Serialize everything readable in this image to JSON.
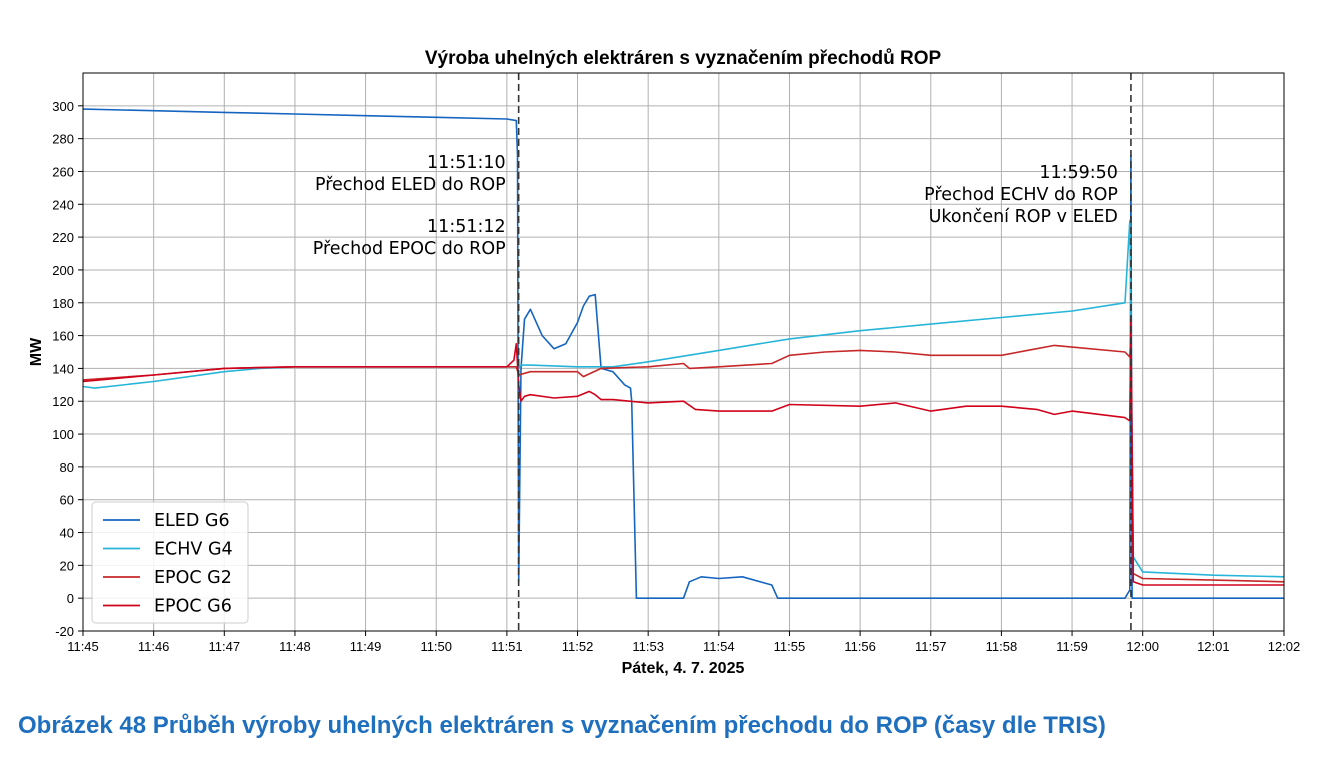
{
  "chart_data": {
    "type": "line",
    "title": "Výroba uhelných elektráren s vyznačením přechodů ROP",
    "xlabel": "Pátek, 4. 7. 2025",
    "ylabel": "MW",
    "xlim": [
      "11:45",
      "12:02"
    ],
    "ylim": [
      -20,
      320
    ],
    "x_ticks": [
      "11:45",
      "11:46",
      "11:47",
      "11:48",
      "11:49",
      "11:50",
      "11:51",
      "11:52",
      "11:53",
      "11:54",
      "11:55",
      "11:56",
      "11:57",
      "11:58",
      "11:59",
      "12:00",
      "12:01",
      "12:02"
    ],
    "y_ticks": [
      -20,
      0,
      20,
      40,
      60,
      80,
      100,
      120,
      140,
      160,
      180,
      200,
      220,
      240,
      260,
      280,
      300
    ],
    "grid": true,
    "legend_position": "lower-left",
    "series": [
      {
        "name": "ELED G6",
        "color": "#1565c0",
        "x": [
          "11:45:00",
          "11:46:00",
          "11:47:00",
          "11:48:00",
          "11:49:00",
          "11:50:00",
          "11:51:00",
          "11:51:08",
          "11:51:09",
          "11:51:10",
          "11:51:12",
          "11:51:15",
          "11:51:20",
          "11:51:30",
          "11:51:40",
          "11:51:50",
          "11:52:00",
          "11:52:05",
          "11:52:10",
          "11:52:15",
          "11:52:20",
          "11:52:30",
          "11:52:40",
          "11:52:45",
          "11:52:46",
          "11:52:50",
          "11:53:00",
          "11:53:30",
          "11:53:35",
          "11:53:45",
          "11:54:00",
          "11:54:20",
          "11:54:40",
          "11:54:45",
          "11:54:50",
          "11:55:00",
          "11:56:00",
          "11:57:00",
          "11:58:00",
          "11:59:00",
          "11:59:45",
          "11:59:49",
          "11:59:50",
          "11:59:51",
          "11:59:55",
          "12:00:00",
          "12:01:00",
          "12:02:00"
        ],
        "values": [
          298,
          297,
          296,
          295,
          294,
          293,
          292,
          291,
          270,
          10,
          140,
          170,
          176,
          160,
          152,
          155,
          168,
          178,
          184,
          185,
          140,
          138,
          130,
          128,
          120,
          0,
          0,
          0,
          10,
          13,
          12,
          13,
          9,
          8,
          0,
          0,
          0,
          0,
          0,
          0,
          0,
          5,
          270,
          0,
          0,
          0,
          0,
          0
        ]
      },
      {
        "name": "ECHV G4",
        "color": "#26b5d9",
        "x": [
          "11:45:00",
          "11:45:10",
          "11:46:00",
          "11:47:00",
          "11:47:30",
          "11:48:00",
          "11:49:00",
          "11:50:00",
          "11:51:00",
          "11:51:08",
          "11:51:10",
          "11:51:12",
          "11:51:20",
          "11:52:00",
          "11:52:30",
          "11:53:00",
          "11:54:00",
          "11:55:00",
          "11:56:00",
          "11:57:00",
          "11:58:00",
          "11:59:00",
          "11:59:45",
          "11:59:49",
          "11:59:50",
          "11:59:52",
          "12:00:00",
          "12:01:00",
          "12:02:00"
        ],
        "values": [
          129,
          128,
          132,
          138,
          140,
          141,
          141,
          141,
          141,
          141,
          140,
          142,
          142,
          141,
          141,
          144,
          151,
          158,
          163,
          167,
          171,
          175,
          180,
          230,
          175,
          25,
          16,
          14,
          13
        ]
      },
      {
        "name": "EPOC G2",
        "color": "#c62828",
        "x": [
          "11:45:00",
          "11:46:00",
          "11:47:00",
          "11:48:00",
          "11:49:00",
          "11:50:00",
          "11:51:00",
          "11:51:08",
          "11:51:10",
          "11:51:15",
          "11:51:20",
          "11:52:00",
          "11:52:05",
          "11:52:20",
          "11:53:00",
          "11:53:30",
          "11:53:35",
          "11:54:00",
          "11:54:45",
          "11:55:00",
          "11:55:30",
          "11:56:00",
          "11:56:30",
          "11:57:00",
          "11:58:00",
          "11:58:30",
          "11:58:45",
          "11:59:00",
          "11:59:45",
          "11:59:49",
          "11:59:50",
          "11:59:52",
          "12:00:00",
          "12:01:00",
          "12:02:00"
        ],
        "values": [
          133,
          136,
          140,
          141,
          141,
          141,
          141,
          141,
          136,
          137,
          138,
          138,
          135,
          140,
          141,
          143,
          140,
          141,
          143,
          148,
          150,
          151,
          150,
          148,
          148,
          152,
          154,
          153,
          150,
          147,
          160,
          15,
          12,
          11,
          10
        ]
      },
      {
        "name": "EPOC G6",
        "color": "#d0021b",
        "x": [
          "11:45:00",
          "11:46:00",
          "11:47:00",
          "11:48:00",
          "11:49:00",
          "11:50:00",
          "11:51:00",
          "11:51:06",
          "11:51:08",
          "11:51:10",
          "11:51:12",
          "11:51:15",
          "11:51:20",
          "11:51:40",
          "11:52:00",
          "11:52:10",
          "11:52:15",
          "11:52:20",
          "11:52:30",
          "11:53:00",
          "11:53:30",
          "11:53:40",
          "11:54:00",
          "11:54:45",
          "11:55:00",
          "11:56:00",
          "11:56:30",
          "11:57:00",
          "11:57:30",
          "11:58:00",
          "11:58:30",
          "11:58:45",
          "11:59:00",
          "11:59:45",
          "11:59:49",
          "11:59:50",
          "11:59:52",
          "12:00:00",
          "12:01:00",
          "12:02:00"
        ],
        "values": [
          132,
          136,
          140,
          141,
          141,
          141,
          141,
          145,
          155,
          130,
          120,
          123,
          124,
          122,
          123,
          126,
          124,
          121,
          121,
          119,
          120,
          115,
          114,
          114,
          118,
          117,
          119,
          114,
          117,
          117,
          115,
          112,
          114,
          110,
          108,
          170,
          10,
          8,
          8,
          8
        ]
      }
    ],
    "vlines": [
      {
        "x": "11:51:10",
        "labels": [
          "11:51:10",
          "Přechod ELED do ROP",
          "11:51:12",
          "Přechod EPOC do ROP"
        ]
      },
      {
        "x": "11:59:50",
        "labels": [
          "11:59:50",
          "Přechod ECHV do ROP",
          "Ukončení ROP v ELED"
        ]
      }
    ]
  },
  "caption": "Obrázek 48 Průběh výroby uhelných elektráren s vyznačením přechodu do ROP (časy dle TRIS)"
}
